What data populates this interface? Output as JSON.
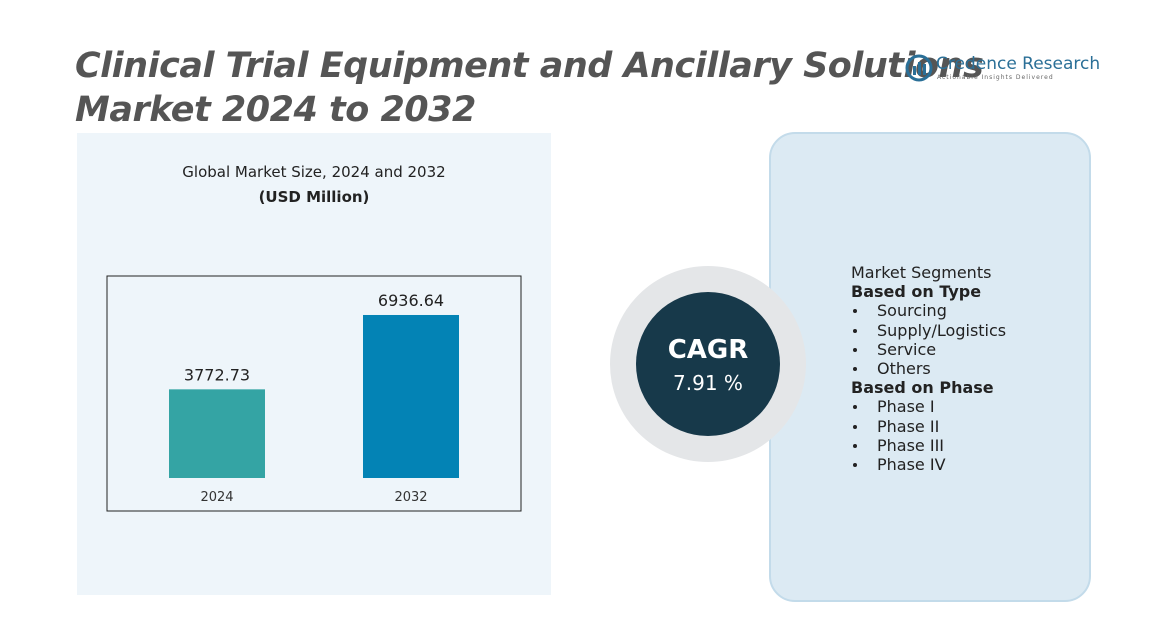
{
  "header": {
    "title_line1": "Clinical Trial Equipment and Ancillary Solutions",
    "title_line2": "Market 2024 to 2032"
  },
  "logo": {
    "name": "Credence Research",
    "tagline": "Actionable Insights Delivered"
  },
  "chart_data": {
    "type": "bar",
    "title": "Global Market Size,  2024 and 2032",
    "subtitle": "(USD Million)",
    "categories": [
      "2024",
      "2032"
    ],
    "values": [
      3772.73,
      6936.64
    ],
    "colors": [
      "#34a4a4",
      "#0383b5"
    ],
    "ylim": [
      0,
      8000
    ]
  },
  "cagr": {
    "label": "CAGR",
    "value": "7.91 %"
  },
  "segments": {
    "title": "Market Segments",
    "groups": [
      {
        "name": "Based on Type",
        "items": [
          "Sourcing",
          "Supply/Logistics",
          "Service",
          "Others"
        ]
      },
      {
        "name": "Based on Phase",
        "items": [
          "Phase I",
          "Phase II",
          "Phase III",
          "Phase IV"
        ]
      }
    ]
  }
}
